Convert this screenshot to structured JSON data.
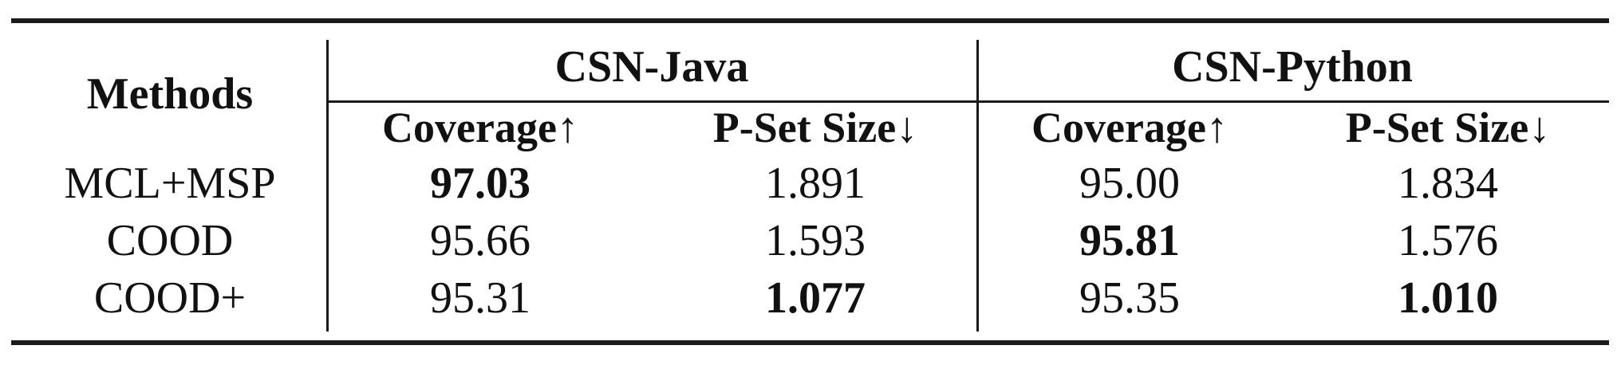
{
  "table": {
    "header": {
      "methods": "Methods",
      "groups": [
        "CSN-Java",
        "CSN-Python"
      ],
      "metrics": [
        "Coverage↑",
        "P-Set Size↓",
        "Coverage↑",
        "P-Set Size↓"
      ]
    },
    "rows": [
      {
        "method": "MCL+MSP",
        "values": [
          "97.03",
          "1.891",
          "95.00",
          "1.834"
        ],
        "bold": [
          true,
          false,
          false,
          false
        ]
      },
      {
        "method": "COOD",
        "values": [
          "95.66",
          "1.593",
          "95.81",
          "1.576"
        ],
        "bold": [
          false,
          false,
          true,
          false
        ]
      },
      {
        "method": "COOD+",
        "values": [
          "95.31",
          "1.077",
          "95.35",
          "1.010"
        ],
        "bold": [
          false,
          true,
          false,
          true
        ]
      }
    ]
  }
}
